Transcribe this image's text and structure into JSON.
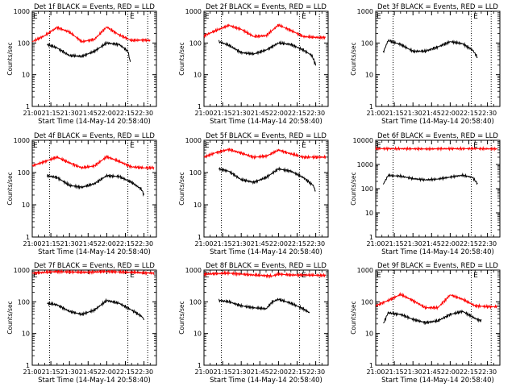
{
  "chart_data": [
    {
      "type": "line",
      "title": "Det 1f BLACK = Events, RED = LLD",
      "xlabel": "Start Time (14-May-14 20:58:40)",
      "ylabel": "Counts/sec",
      "yscale": "log",
      "ylim": [
        1,
        1000
      ],
      "y_ticks": [
        "1",
        "10",
        "100",
        "1000"
      ],
      "xlim": [
        "21:00",
        "22:40"
      ],
      "x_ticks": [
        "21:00",
        "21:15",
        "21:30",
        "21:45",
        "22:00",
        "22:15",
        "22:30"
      ],
      "markers": [
        {
          "label": "E",
          "time": "21:00"
        },
        {
          "label": "E",
          "time": "22:18"
        }
      ],
      "vlines": [
        "21:14",
        "22:17",
        "22:33"
      ],
      "series": [
        {
          "color": "#ff0000",
          "x": [
            "21:00",
            "21:10",
            "21:20",
            "21:30",
            "21:40",
            "21:50",
            "22:00",
            "22:10",
            "22:20",
            "22:30",
            "22:35"
          ],
          "values": [
            110,
            170,
            310,
            220,
            110,
            130,
            320,
            180,
            120,
            125,
            120
          ]
        },
        {
          "color": "#000000",
          "x": [
            "21:12",
            "21:20",
            "21:30",
            "21:40",
            "21:50",
            "22:00",
            "22:10",
            "22:17",
            "22:19"
          ],
          "values": [
            90,
            70,
            40,
            38,
            55,
            100,
            90,
            55,
            25
          ]
        }
      ]
    },
    {
      "type": "line",
      "title": "Det 2f BLACK = Events, RED = LLD",
      "xlabel": "Start Time (14-May-14 20:58:40)",
      "ylabel": "Counts/sec",
      "yscale": "log",
      "ylim": [
        1,
        1000
      ],
      "y_ticks": [
        "1",
        "10",
        "100",
        "1000"
      ],
      "xlim": [
        "21:00",
        "22:40"
      ],
      "x_ticks": [
        "21:00",
        "21:15",
        "21:30",
        "21:45",
        "22:00",
        "22:15",
        "22:30"
      ],
      "markers": [
        {
          "label": "E",
          "time": "21:00"
        },
        {
          "label": "E",
          "time": "22:18"
        }
      ],
      "vlines": [
        "21:14",
        "22:17",
        "22:33"
      ],
      "series": [
        {
          "color": "#ff0000",
          "x": [
            "21:00",
            "21:10",
            "21:20",
            "21:30",
            "21:40",
            "21:50",
            "22:00",
            "22:10",
            "22:20",
            "22:30",
            "22:38"
          ],
          "values": [
            170,
            250,
            360,
            270,
            160,
            170,
            370,
            250,
            160,
            150,
            150
          ]
        },
        {
          "color": "#000000",
          "x": [
            "21:12",
            "21:20",
            "21:30",
            "21:40",
            "21:50",
            "22:00",
            "22:10",
            "22:20",
            "22:27",
            "22:30"
          ],
          "values": [
            110,
            85,
            50,
            45,
            60,
            100,
            90,
            60,
            40,
            20
          ]
        }
      ]
    },
    {
      "type": "line",
      "title": "Det 3f BLACK = Events, RED = LLD",
      "xlabel": "Start Time (14-May-14 20:58:40)",
      "ylabel": "Counts/sec",
      "yscale": "log",
      "ylim": [
        1,
        1000
      ],
      "y_ticks": [
        "1",
        "10",
        "100",
        "1000"
      ],
      "xlim": [
        "21:00",
        "22:40"
      ],
      "x_ticks": [
        "21:00",
        "21:15",
        "21:30",
        "21:45",
        "22:00",
        "22:15",
        "22:30"
      ],
      "markers": [
        {
          "label": "E",
          "time": "21:00"
        },
        {
          "label": "E",
          "time": "22:18"
        }
      ],
      "vlines": [
        "21:14",
        "22:17",
        "22:33"
      ],
      "series": [
        {
          "color": "#000000",
          "x": [
            "21:06",
            "21:10",
            "21:20",
            "21:30",
            "21:40",
            "21:50",
            "22:00",
            "22:10",
            "22:18",
            "22:22"
          ],
          "values": [
            50,
            120,
            90,
            55,
            55,
            75,
            110,
            95,
            60,
            35
          ]
        }
      ]
    },
    {
      "type": "line",
      "title": "Det 4f BLACK = Events, RED = LLD",
      "xlabel": "Start Time (14-May-14 20:58:40)",
      "ylabel": "Counts/sec",
      "yscale": "log",
      "ylim": [
        1,
        1000
      ],
      "y_ticks": [
        "1",
        "10",
        "100",
        "1000"
      ],
      "xlim": [
        "21:00",
        "22:40"
      ],
      "x_ticks": [
        "21:00",
        "21:15",
        "21:30",
        "21:45",
        "22:00",
        "22:15",
        "22:30"
      ],
      "markers": [
        {
          "label": "E",
          "time": "21:00"
        },
        {
          "label": "E",
          "time": "22:18"
        }
      ],
      "vlines": [
        "21:14",
        "22:17",
        "22:33"
      ],
      "series": [
        {
          "color": "#ff0000",
          "x": [
            "21:00",
            "21:10",
            "21:20",
            "21:30",
            "21:40",
            "21:50",
            "22:00",
            "22:10",
            "22:20",
            "22:30",
            "22:38"
          ],
          "values": [
            160,
            220,
            300,
            200,
            140,
            160,
            310,
            220,
            150,
            140,
            140
          ]
        },
        {
          "color": "#000000",
          "x": [
            "21:12",
            "21:20",
            "21:30",
            "21:40",
            "21:50",
            "22:00",
            "22:10",
            "22:20",
            "22:28",
            "22:30"
          ],
          "values": [
            80,
            70,
            40,
            35,
            45,
            80,
            75,
            50,
            30,
            20
          ]
        }
      ]
    },
    {
      "type": "line",
      "title": "Det 5f BLACK = Events, RED = LLD",
      "xlabel": "Start Time (14-May-14 20:58:40)",
      "ylabel": "Counts/sec",
      "yscale": "log",
      "ylim": [
        1,
        1000
      ],
      "y_ticks": [
        "1",
        "10",
        "100",
        "1000"
      ],
      "xlim": [
        "21:00",
        "22:40"
      ],
      "x_ticks": [
        "21:00",
        "21:15",
        "21:30",
        "21:45",
        "22:00",
        "22:15",
        "22:30"
      ],
      "markers": [
        {
          "label": "E",
          "time": "21:00"
        },
        {
          "label": "E",
          "time": "22:18"
        }
      ],
      "vlines": [
        "21:14",
        "22:17",
        "22:33"
      ],
      "series": [
        {
          "color": "#ff0000",
          "x": [
            "21:00",
            "21:10",
            "21:20",
            "21:30",
            "21:40",
            "21:50",
            "22:00",
            "22:10",
            "22:20",
            "22:30",
            "22:38"
          ],
          "values": [
            300,
            420,
            520,
            400,
            300,
            320,
            500,
            380,
            300,
            300,
            300
          ]
        },
        {
          "color": "#000000",
          "x": [
            "21:12",
            "21:20",
            "21:30",
            "21:40",
            "21:50",
            "22:00",
            "22:10",
            "22:20",
            "22:28",
            "22:30"
          ],
          "values": [
            130,
            110,
            60,
            50,
            70,
            130,
            110,
            70,
            40,
            25
          ]
        }
      ]
    },
    {
      "type": "line",
      "title": "Det 6f BLACK = Events, RED = LLD",
      "xlabel": "Start Time (14-May-14 20:58:40)",
      "ylabel": "Counts/sec",
      "yscale": "log",
      "ylim": [
        1,
        10000
      ],
      "y_ticks": [
        "1",
        "10",
        "100",
        "1000",
        "10000"
      ],
      "xlim": [
        "21:00",
        "22:40"
      ],
      "x_ticks": [
        "21:00",
        "21:15",
        "21:30",
        "21:45",
        "22:00",
        "22:15",
        "22:30"
      ],
      "markers": [
        {
          "label": "E",
          "time": "21:00"
        },
        {
          "label": "E",
          "time": "22:18"
        }
      ],
      "vlines": [
        "21:14",
        "22:17",
        "22:33"
      ],
      "series": [
        {
          "color": "#ff0000",
          "x": [
            "21:00",
            "21:20",
            "21:40",
            "22:00",
            "22:20",
            "22:38"
          ],
          "values": [
            4500,
            4500,
            4400,
            4500,
            4500,
            4400
          ]
        },
        {
          "color": "#000000",
          "x": [
            "21:06",
            "21:10",
            "21:20",
            "21:30",
            "21:40",
            "21:50",
            "22:00",
            "22:10",
            "22:18",
            "22:22"
          ],
          "values": [
            150,
            350,
            330,
            260,
            230,
            250,
            300,
            360,
            290,
            160
          ]
        }
      ]
    },
    {
      "type": "line",
      "title": "Det 7f BLACK = Events, RED = LLD",
      "xlabel": "Start Time (14-May-14 20:58:40)",
      "ylabel": "Counts/sec",
      "yscale": "log",
      "ylim": [
        1,
        1000
      ],
      "y_ticks": [
        "1",
        "10",
        "100",
        "1000"
      ],
      "xlim": [
        "21:00",
        "22:40"
      ],
      "x_ticks": [
        "21:00",
        "21:15",
        "21:30",
        "21:45",
        "22:00",
        "22:15",
        "22:30"
      ],
      "markers": [
        {
          "label": "E",
          "time": "21:00"
        },
        {
          "label": "E",
          "time": "22:18"
        }
      ],
      "vlines": [
        "21:14",
        "22:17",
        "22:33"
      ],
      "series": [
        {
          "color": "#ff0000",
          "x": [
            "21:00",
            "21:20",
            "21:40",
            "22:00",
            "22:20",
            "22:38"
          ],
          "values": [
            800,
            900,
            850,
            900,
            850,
            800
          ]
        },
        {
          "color": "#000000",
          "x": [
            "21:12",
            "21:20",
            "21:30",
            "21:40",
            "21:50",
            "22:00",
            "22:10",
            "22:20",
            "22:28",
            "22:30"
          ],
          "values": [
            90,
            80,
            50,
            40,
            55,
            110,
            90,
            55,
            35,
            28
          ]
        }
      ]
    },
    {
      "type": "line",
      "title": "Det 8f BLACK = Events, RED = LLD",
      "xlabel": "Start Time (14-May-14 20:58:40)",
      "ylabel": "Counts/sec",
      "yscale": "log",
      "ylim": [
        1,
        1000
      ],
      "y_ticks": [
        "1",
        "10",
        "100",
        "1000"
      ],
      "xlim": [
        "21:00",
        "22:40"
      ],
      "x_ticks": [
        "21:00",
        "21:15",
        "21:30",
        "21:45",
        "22:00",
        "22:15",
        "22:30"
      ],
      "markers": [
        {
          "label": "E",
          "time": "21:00"
        },
        {
          "label": "E",
          "time": "22:18"
        }
      ],
      "vlines": [
        "21:14",
        "22:17",
        "22:33"
      ],
      "series": [
        {
          "color": "#ff0000",
          "x": [
            "21:00",
            "21:20",
            "21:40",
            "21:55",
            "22:00",
            "22:10",
            "22:20",
            "22:38"
          ],
          "values": [
            750,
            800,
            700,
            650,
            750,
            700,
            700,
            680
          ]
        },
        {
          "color": "#000000",
          "x": [
            "21:12",
            "21:20",
            "21:30",
            "21:40",
            "21:50",
            "21:55",
            "22:00",
            "22:10",
            "22:20",
            "22:25"
          ],
          "values": [
            110,
            100,
            75,
            65,
            60,
            100,
            120,
            90,
            60,
            45
          ]
        }
      ]
    },
    {
      "type": "line",
      "title": "Det 9f BLACK = Events, RED = LLD",
      "xlabel": "Start Time (14-May-14 20:58:40)",
      "ylabel": "Counts/sec",
      "yscale": "log",
      "ylim": [
        1,
        1000
      ],
      "y_ticks": [
        "1",
        "10",
        "100",
        "1000"
      ],
      "xlim": [
        "21:00",
        "22:40"
      ],
      "x_ticks": [
        "21:00",
        "21:15",
        "21:30",
        "21:45",
        "22:00",
        "22:15",
        "22:30"
      ],
      "markers": [
        {
          "label": "E",
          "time": "21:00"
        },
        {
          "label": "E",
          "time": "22:18"
        }
      ],
      "vlines": [
        "21:14",
        "22:17",
        "22:33"
      ],
      "series": [
        {
          "color": "#ff0000",
          "x": [
            "21:00",
            "21:10",
            "21:20",
            "21:30",
            "21:40",
            "21:50",
            "22:00",
            "22:10",
            "22:20",
            "22:30",
            "22:38"
          ],
          "values": [
            75,
            110,
            170,
            110,
            65,
            65,
            165,
            120,
            75,
            70,
            70
          ]
        },
        {
          "color": "#000000",
          "x": [
            "21:06",
            "21:10",
            "21:20",
            "21:30",
            "21:40",
            "21:50",
            "22:00",
            "22:10",
            "22:20",
            "22:25"
          ],
          "values": [
            20,
            45,
            40,
            28,
            22,
            25,
            40,
            50,
            30,
            25
          ]
        }
      ]
    }
  ]
}
